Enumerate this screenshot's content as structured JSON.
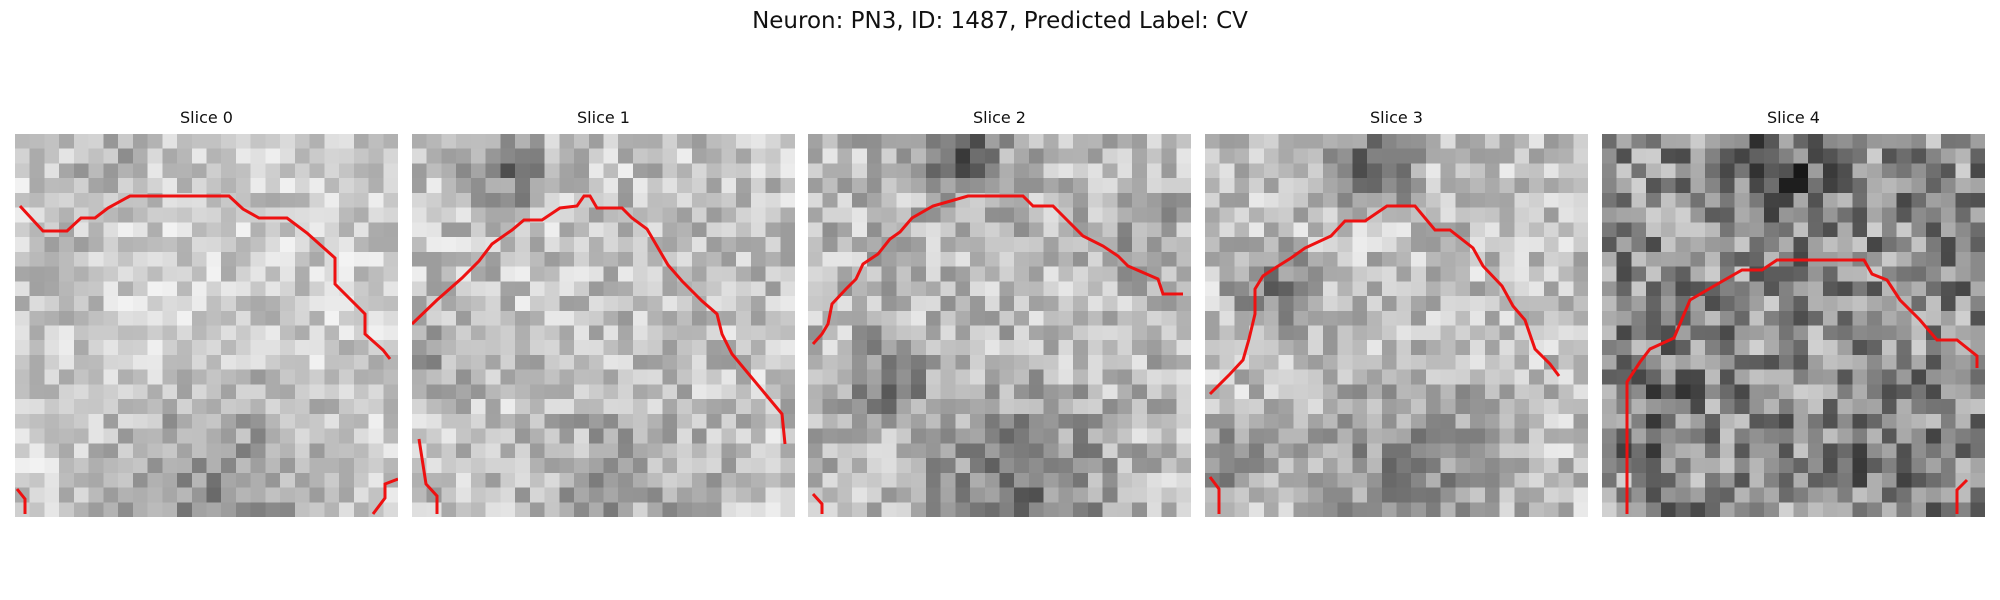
{
  "figure": {
    "title": "Neuron: PN3, ID: 1487, Predicted Label: CV"
  },
  "colors": {
    "contour": "#ee1111",
    "background": "#ffffff"
  },
  "panels": [
    {
      "title": "Slice 0",
      "seed": 11,
      "base": 205,
      "spread": 38
    },
    {
      "title": "Slice 1",
      "seed": 23,
      "base": 195,
      "spread": 44
    },
    {
      "title": "Slice 2",
      "seed": 37,
      "base": 185,
      "spread": 46
    },
    {
      "title": "Slice 3",
      "seed": 53,
      "base": 192,
      "spread": 44
    },
    {
      "title": "Slice 4",
      "seed": 71,
      "base": 140,
      "spread": 70
    }
  ]
}
